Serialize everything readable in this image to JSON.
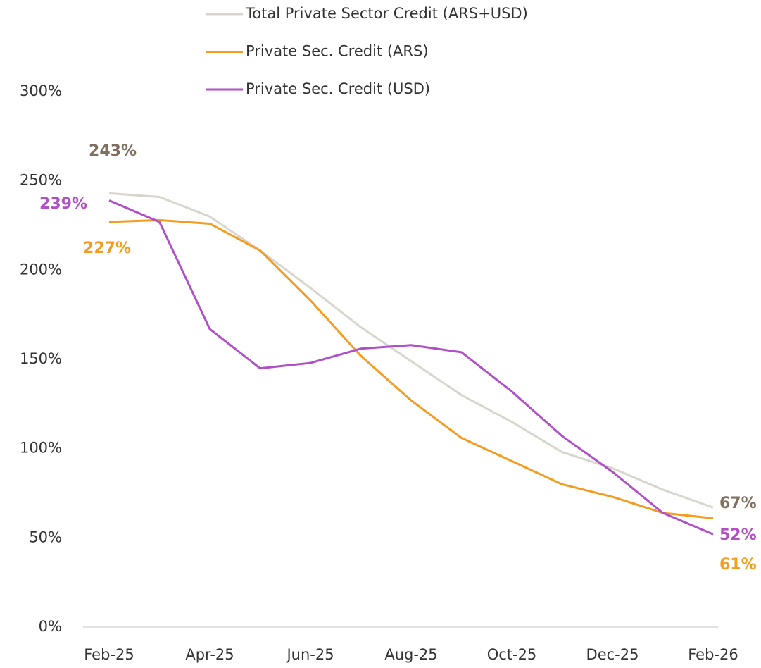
{
  "chart_data": {
    "type": "line",
    "categories": [
      "Feb-25",
      null,
      "Apr-25",
      null,
      "Jun-25",
      null,
      "Aug-25",
      null,
      "Oct-25",
      null,
      "Dec-25",
      null,
      "Feb-26"
    ],
    "series": [
      {
        "name": "Total Private Sector Credit (ARS+USD)",
        "color": "#d9d5ce",
        "label_color": "#7f6f5f",
        "values": [
          243,
          241,
          230,
          211,
          190,
          168,
          149,
          130,
          115,
          98,
          89,
          77,
          67
        ],
        "value_labels": [
          "243%",
          null,
          null,
          null,
          null,
          null,
          null,
          null,
          null,
          null,
          null,
          null,
          "67%"
        ]
      },
      {
        "name": "Private Sec. Credit (ARS)",
        "color": "#f39c1f",
        "label_color": "#f39c1f",
        "values": [
          227,
          228,
          226,
          211,
          183,
          152,
          127,
          106,
          93,
          80,
          73,
          64,
          61
        ],
        "value_labels": [
          "227%",
          null,
          null,
          null,
          null,
          null,
          null,
          null,
          null,
          null,
          null,
          null,
          "61%"
        ]
      },
      {
        "name": "Private Sec. Credit (USD)",
        "color": "#b04fc8",
        "label_color": "#b04fc8",
        "values": [
          239,
          227,
          167,
          145,
          148,
          156,
          158,
          154,
          132,
          107,
          87,
          64,
          52
        ],
        "value_labels": [
          "239%",
          null,
          null,
          null,
          null,
          null,
          null,
          null,
          null,
          null,
          null,
          null,
          "52%"
        ]
      }
    ],
    "ylim": [
      0,
      300
    ],
    "yticks": [
      {
        "value": 0,
        "label": "0%"
      },
      {
        "value": 50,
        "label": "50%"
      },
      {
        "value": 100,
        "label": "100%"
      },
      {
        "value": 150,
        "label": "150%"
      },
      {
        "value": 200,
        "label": "200%"
      },
      {
        "value": 250,
        "label": "250%"
      },
      {
        "value": 300,
        "label": "300%"
      }
    ],
    "grid": false,
    "legend": "top"
  }
}
